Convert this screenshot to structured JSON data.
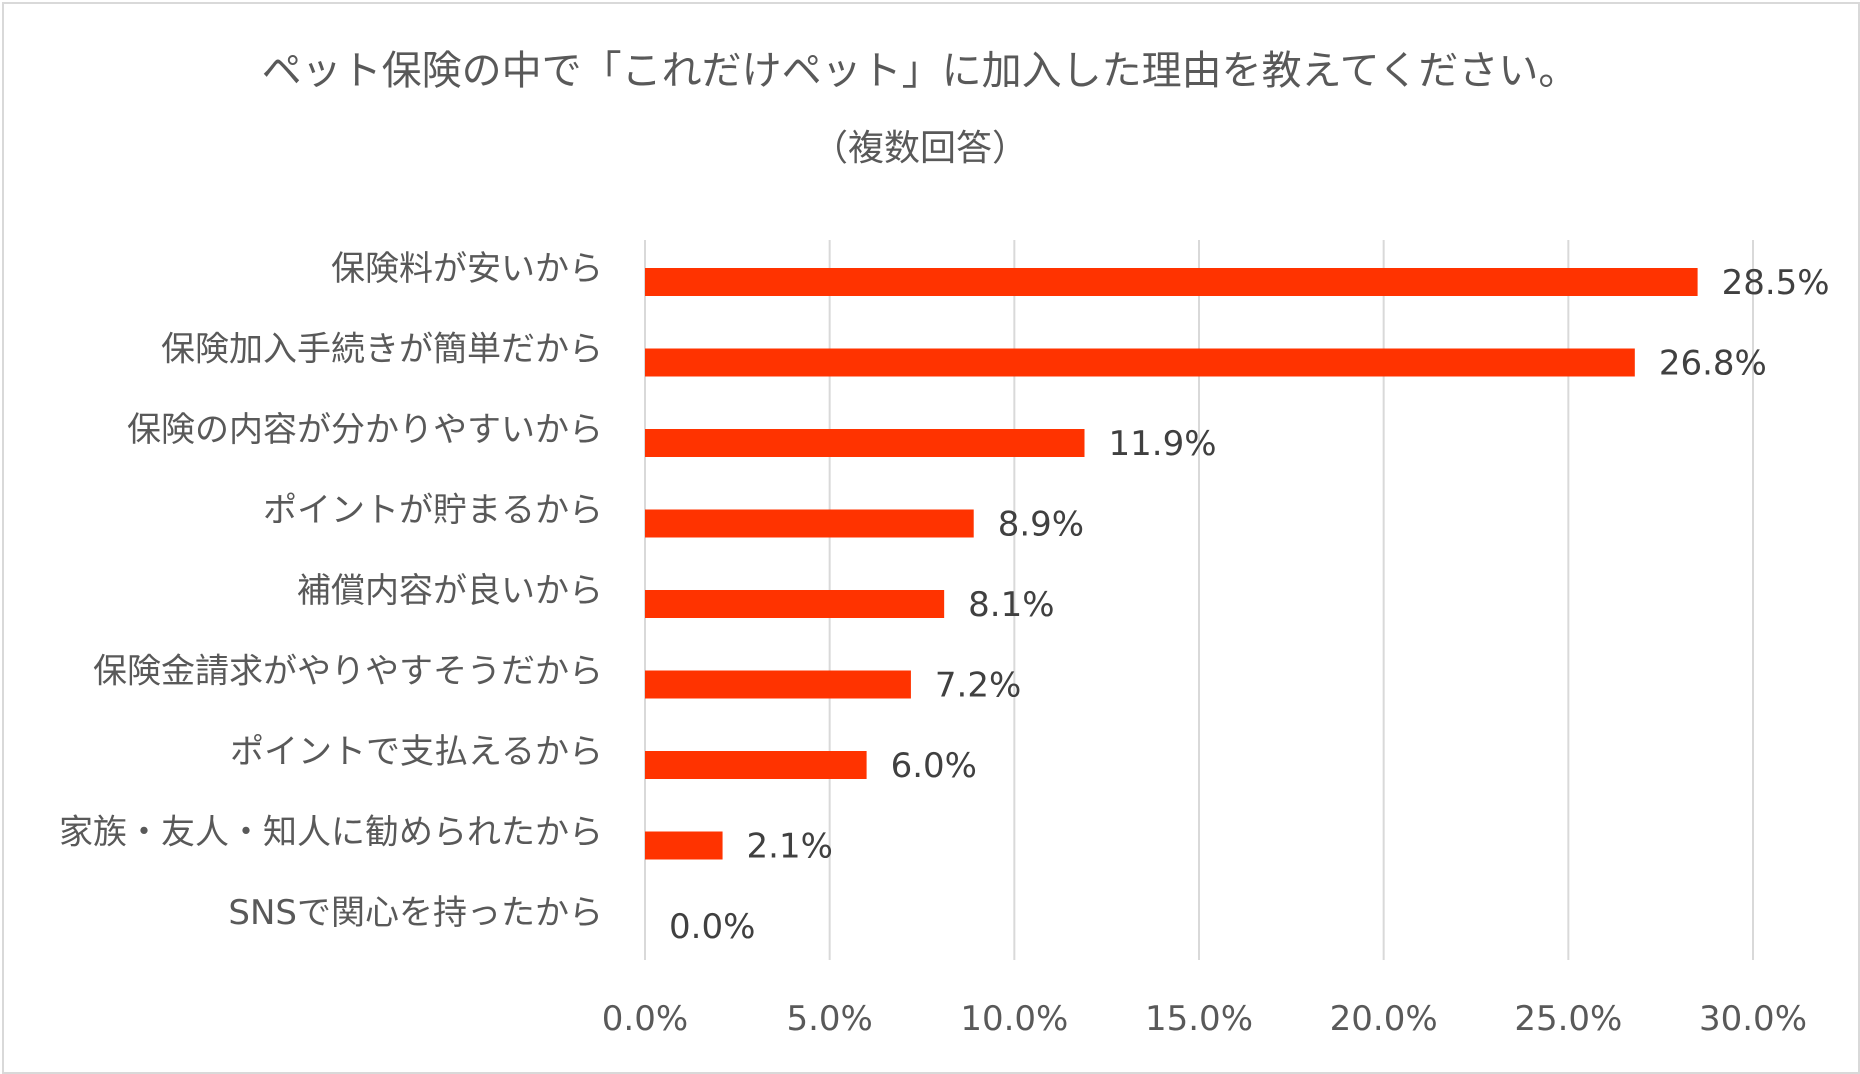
{
  "chart_data": {
    "type": "bar",
    "orientation": "horizontal",
    "title": "ペット保険の中で「これだけペット」に加入した理由を教えてください。",
    "subtitle": "（複数回答）",
    "categories": [
      "保険料が安いから",
      "保険加入手続きが簡単だから",
      "保険の内容が分かりやすいから",
      "ポイントが貯まるから",
      "補償内容が良いから",
      "保険金請求がやりやすそうだから",
      "ポイントで支払えるから",
      "家族・友人・知人に勧められたから",
      "SNSで関心を持ったから"
    ],
    "values": [
      28.5,
      26.8,
      11.9,
      8.9,
      8.1,
      7.2,
      6.0,
      2.1,
      0.0
    ],
    "value_labels": [
      "28.5%",
      "26.8%",
      "11.9%",
      "8.9%",
      "8.1%",
      "7.2%",
      "6.0%",
      "2.1%",
      "0.0%"
    ],
    "xlim": [
      0,
      30
    ],
    "xticks": [
      0,
      5,
      10,
      15,
      20,
      25,
      30
    ],
    "xtick_labels": [
      "0.0%",
      "5.0%",
      "10.0%",
      "15.0%",
      "20.0%",
      "25.0%",
      "30.0%"
    ],
    "xlabel": "",
    "ylabel": "",
    "grid": "vertical",
    "legend": "none",
    "bar_color": "#ff3300"
  }
}
